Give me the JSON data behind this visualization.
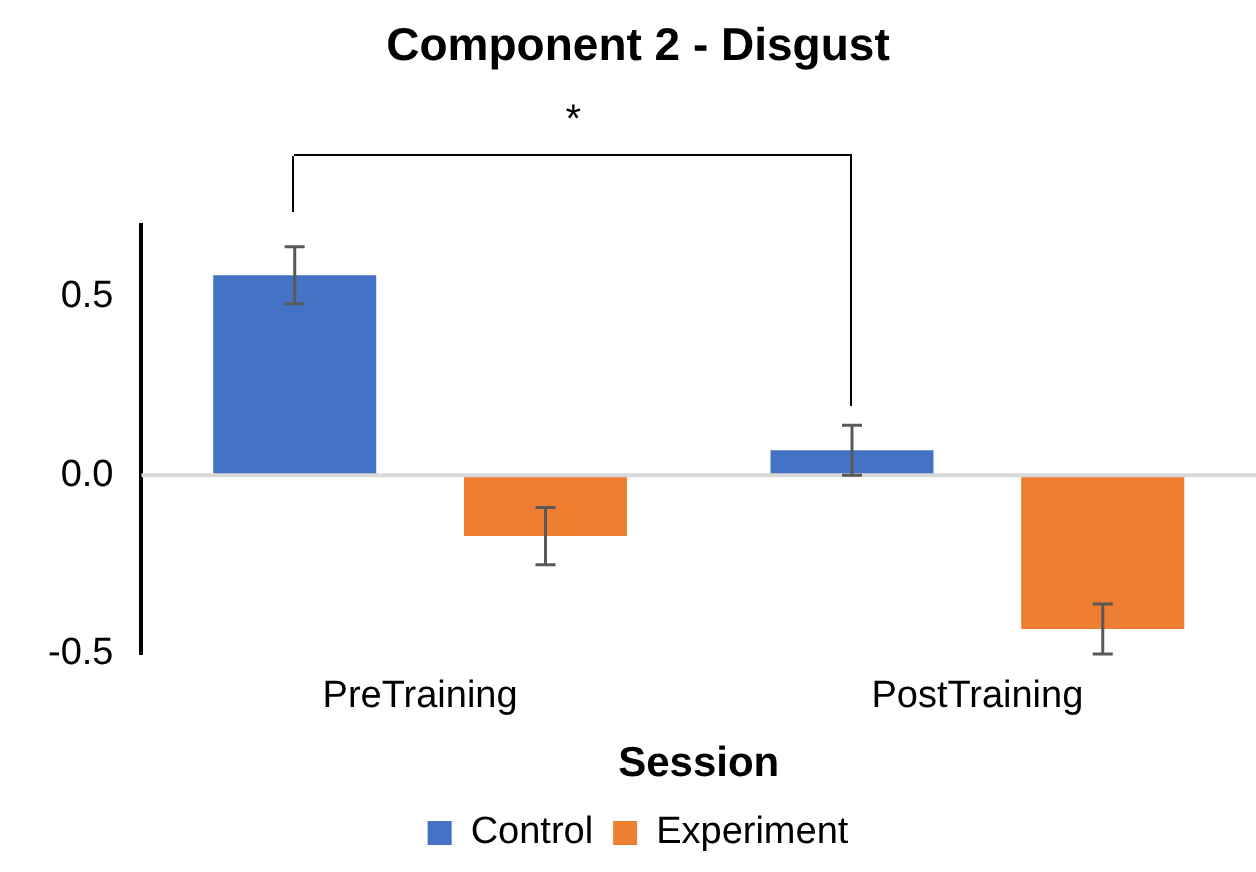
{
  "chart_data": {
    "type": "bar",
    "title": "Component 2 - Disgust",
    "xlabel": "Session",
    "categories": [
      "PreTraining",
      "PostTraining"
    ],
    "series": [
      {
        "name": "Control",
        "color": "#4472c4",
        "values": [
          0.56,
          0.07
        ],
        "errors": [
          0.08,
          0.07
        ]
      },
      {
        "name": "Experiment",
        "color": "#ed7d31",
        "values": [
          -0.17,
          -0.43
        ],
        "errors": [
          0.08,
          0.07
        ]
      }
    ],
    "ylim": [
      -0.5,
      0.7
    ],
    "yticks": [
      {
        "value": -0.5,
        "label": "-0.5"
      },
      {
        "value": 0,
        "label": "0.0"
      },
      {
        "value": 0.5,
        "label": "0.5"
      }
    ],
    "legend": "bottom",
    "ref_lines": [
      {
        "axis": "y",
        "value": 0,
        "color": "#d9d9d9"
      }
    ],
    "annotations": [
      "*"
    ]
  }
}
